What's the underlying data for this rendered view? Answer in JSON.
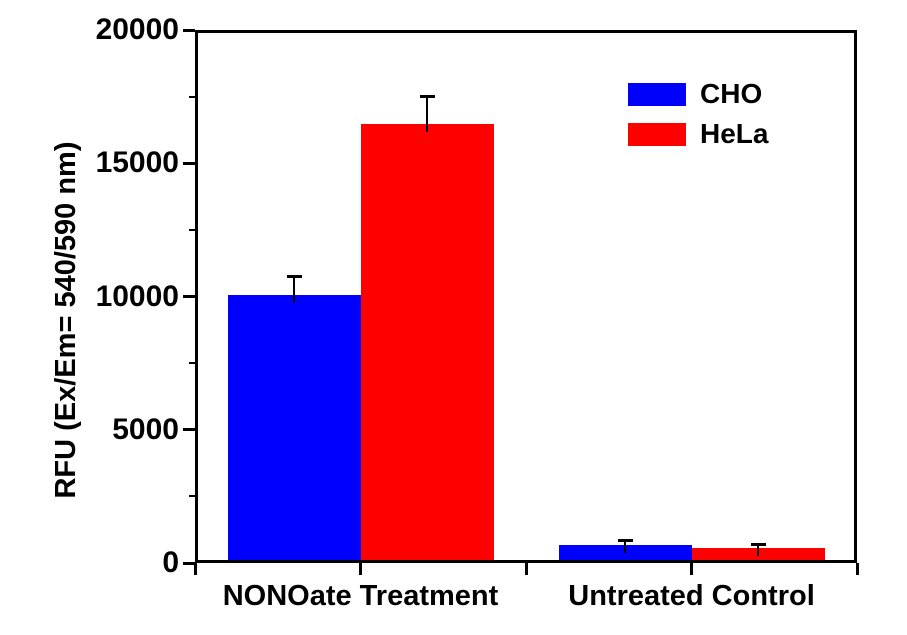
{
  "figure": {
    "background": "#FFFFFF"
  },
  "chart_data": {
    "type": "bar",
    "title": "",
    "xlabel": "",
    "ylabel": "RFU (Ex/Em= 540/590 nm)",
    "categories": [
      "NONOate Treatment",
      "Untreated Control"
    ],
    "series": [
      {
        "name": "CHO",
        "color": "#0000FF",
        "values": [
          10000,
          550
        ],
        "errors": [
          700,
          220
        ]
      },
      {
        "name": "HeLa",
        "color": "#FF0000",
        "values": [
          16450,
          450
        ],
        "errors": [
          1050,
          140
        ]
      }
    ],
    "ylim": [
      0,
      20000
    ],
    "y_major_ticks": [
      0,
      5000,
      10000,
      15000,
      20000
    ],
    "y_tick_labels": [
      "0",
      "5000",
      "10000",
      "15000",
      "20000"
    ],
    "y_minor_ticks": [
      2500,
      7500,
      12500,
      17500
    ],
    "grid": false,
    "legend": {
      "entries": [
        "CHO",
        "HeLa"
      ],
      "position": "upper-right"
    },
    "axis_color": "#000000",
    "error_bar_color": "#000000",
    "bar_outline": "none"
  }
}
